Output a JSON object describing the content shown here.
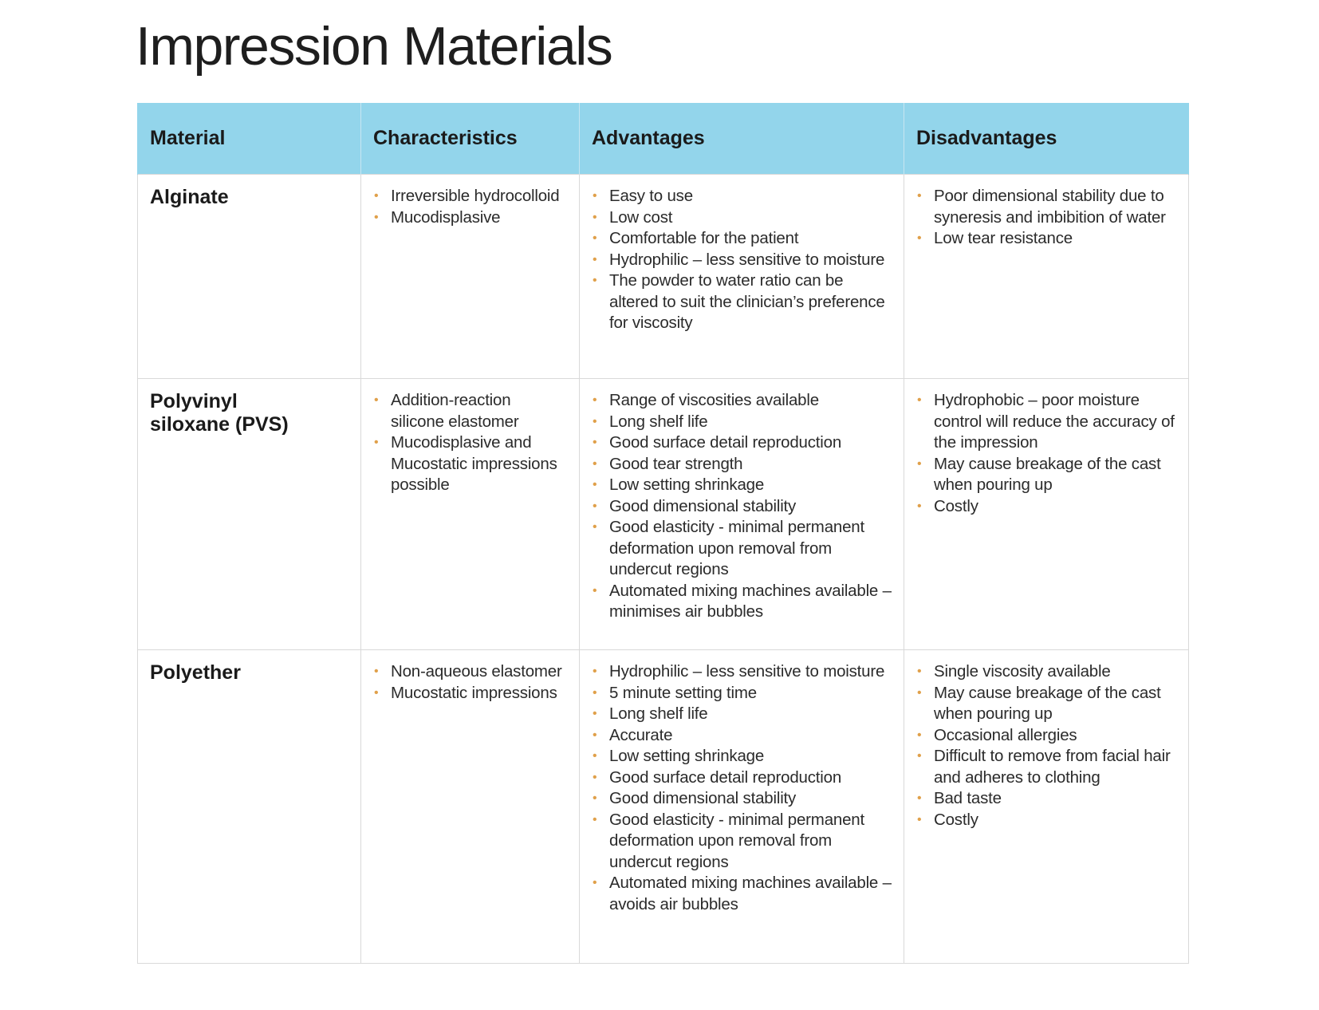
{
  "title": "Impression Materials",
  "accent_colors": {
    "header_background": "#93d5eb",
    "bullet": "#e0a04a"
  },
  "table": {
    "headers": [
      "Material",
      "Characteristics",
      "Advantages",
      "Disadvantages"
    ],
    "rows": [
      {
        "material": [
          "Alginate"
        ],
        "characteristics": [
          "Irreversible hydrocolloid",
          "Mucodisplasive"
        ],
        "advantages": [
          "Easy to use",
          "Low cost",
          "Comfortable for the patient",
          "Hydrophilic – less sensitive to moisture",
          "The powder to water ratio can be altered to suit the clinician’s preference for viscosity"
        ],
        "disadvantages": [
          "Poor dimensional stability due to syneresis and imbibition of water",
          "Low tear resistance"
        ]
      },
      {
        "material": [
          "Polyvinyl",
          "siloxane (PVS)"
        ],
        "characteristics": [
          "Addition-reaction silicone elastomer",
          "Mucodisplasive and Mucostatic impressions possible"
        ],
        "advantages": [
          "Range of viscosities available",
          "Long shelf life",
          "Good surface detail reproduction",
          "Good tear strength",
          "Low setting shrinkage",
          "Good dimensional stability",
          "Good elasticity - minimal permanent deformation upon removal from undercut regions",
          "Automated mixing machines available – minimises air bubbles"
        ],
        "disadvantages": [
          "Hydrophobic – poor moisture control will reduce the accuracy of the impression",
          "May cause breakage of the cast when pouring up",
          "Costly"
        ]
      },
      {
        "material": [
          "Polyether"
        ],
        "characteristics": [
          "Non-aqueous elastomer",
          "Mucostatic impressions"
        ],
        "advantages": [
          "Hydrophilic – less sensitive to moisture",
          "5 minute setting time",
          "Long shelf life",
          "Accurate",
          "Low setting shrinkage",
          "Good surface detail reproduction",
          "Good dimensional stability",
          "Good elasticity - minimal permanent deformation upon removal from undercut regions",
          "Automated mixing machines available – avoids air bubbles"
        ],
        "disadvantages": [
          "Single viscosity available",
          "May cause breakage of the cast when pouring up",
          "Occasional allergies",
          "Difficult to remove from facial hair and adheres to clothing",
          "Bad taste",
          "Costly"
        ]
      }
    ]
  }
}
